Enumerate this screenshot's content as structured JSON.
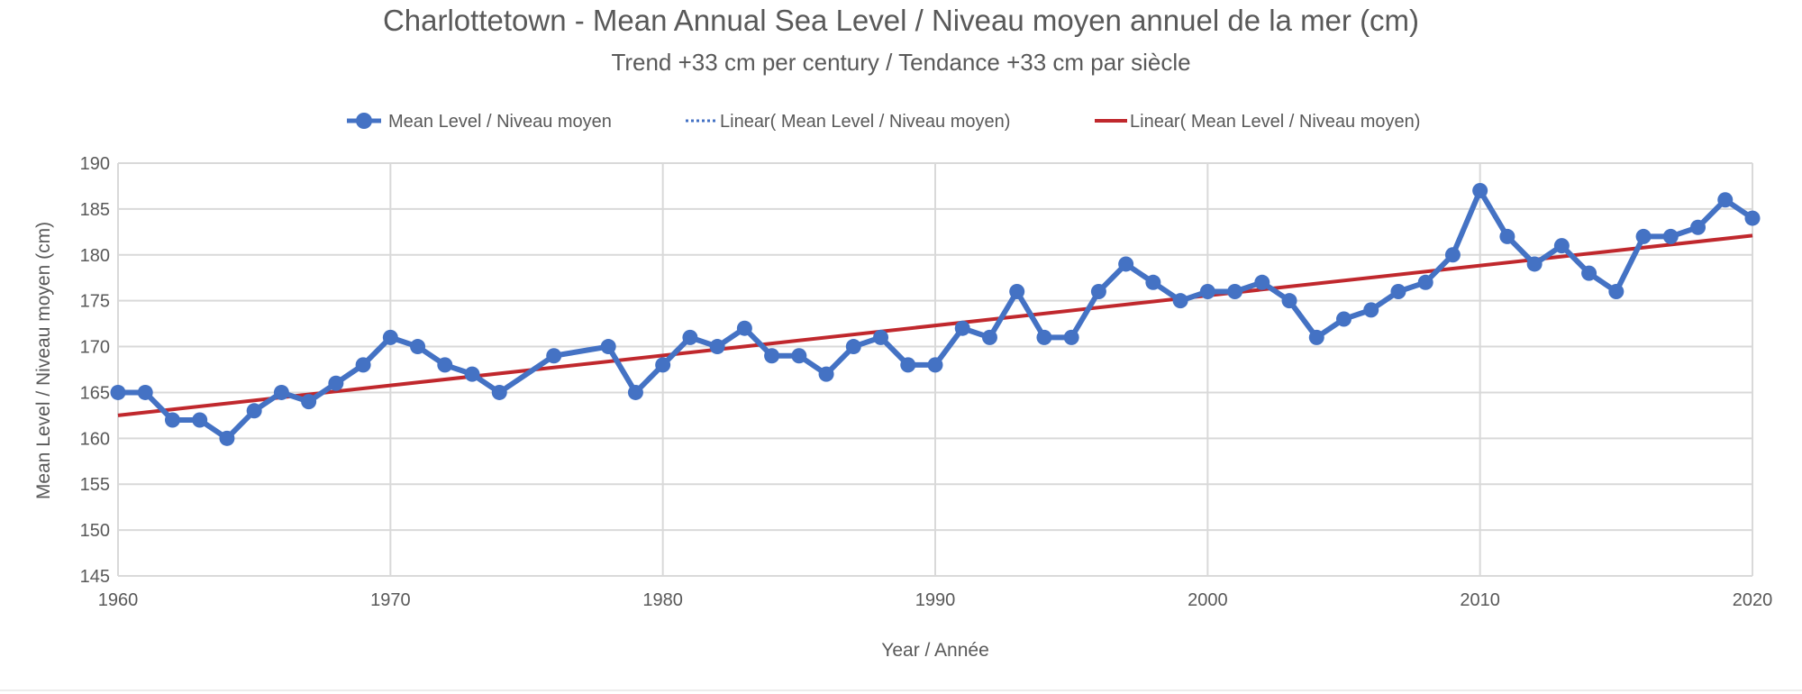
{
  "chart_data": {
    "type": "line",
    "title": "Charlottetown - Mean Annual Sea Level / Niveau moyen annuel de la mer (cm)",
    "subtitle": "Trend +33 cm per century / Tendance +33 cm par siècle",
    "xlabel": "Year / Année",
    "ylabel": "Mean Level / Niveau moyen (cm)",
    "xlim": [
      1960,
      2020
    ],
    "ylim": [
      145,
      190
    ],
    "xticks": [
      1960,
      1970,
      1980,
      1990,
      2000,
      2010,
      2020
    ],
    "yticks": [
      145,
      150,
      155,
      160,
      165,
      170,
      175,
      180,
      185,
      190
    ],
    "grid": true,
    "legend_position": "top",
    "legend": [
      "Mean Level / Niveau moyen",
      "Linear( Mean Level / Niveau moyen)",
      "Linear( Mean Level / Niveau moyen)"
    ],
    "series": [
      {
        "name": "Mean Level / Niveau moyen",
        "color": "#4472C4",
        "x_start": 1960,
        "values": [
          165,
          165,
          162,
          162,
          160,
          163,
          165,
          164,
          166,
          168,
          171,
          170,
          168,
          167,
          165,
          null,
          169,
          null,
          170,
          165,
          168,
          171,
          170,
          172,
          169,
          169,
          167,
          170,
          171,
          168,
          168,
          172,
          171,
          176,
          171,
          171,
          176,
          179,
          177,
          175,
          176,
          176,
          177,
          175,
          171,
          173,
          174,
          176,
          177,
          180,
          187,
          182,
          179,
          181,
          178,
          176,
          182,
          182,
          183,
          186,
          184
        ]
      },
      {
        "name": "Linear( Mean Level / Niveau moyen)",
        "style": "dotted",
        "color": "#4472C4",
        "x": [
          1960,
          2020
        ],
        "y": [
          162.5,
          182.1
        ]
      },
      {
        "name": "Linear( Mean Level / Niveau moyen)",
        "style": "solid",
        "color": "#C0282D",
        "x": [
          1960,
          2020
        ],
        "y": [
          162.5,
          182.1
        ]
      }
    ]
  }
}
